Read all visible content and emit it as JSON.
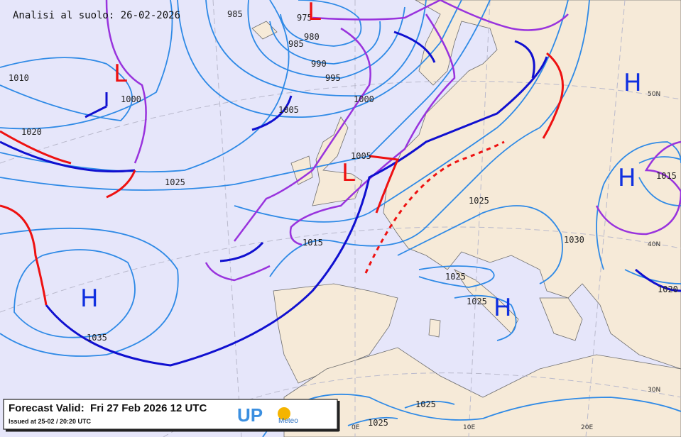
{
  "header": {
    "title": "Analisi al suolo: 26-02-2026"
  },
  "isobar_labels": [
    "985",
    "975",
    "980",
    "985",
    "990",
    "995",
    "1000",
    "1010",
    "1000",
    "1005",
    "1020",
    "1005",
    "1025",
    "1015",
    "1025",
    "1030",
    "1025",
    "1025",
    "1035",
    "1015",
    "1020",
    "1025",
    "1025"
  ],
  "pressure_centers": [
    "L",
    "L",
    "L",
    "H",
    "H",
    "H",
    "H"
  ],
  "grid_labels": [
    "50N",
    "40N",
    "30N",
    "0E",
    "10E",
    "20E"
  ],
  "footer": {
    "forecast": "Forecast Valid:  Fri 27 Feb 2026 12 UTC",
    "issued": "Issued at 25-02 / 20:20 UTC",
    "logo": "UP",
    "logo_sub": "Meteo"
  }
}
